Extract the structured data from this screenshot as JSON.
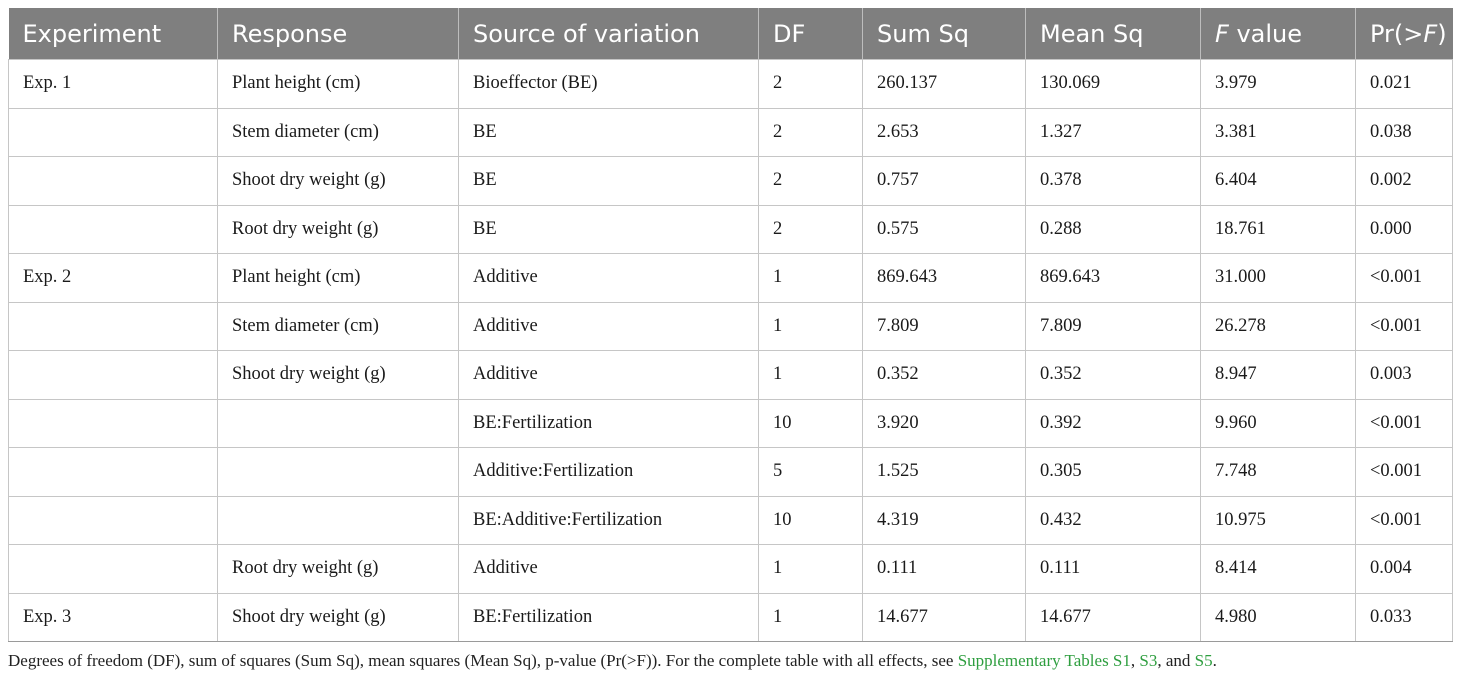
{
  "table": {
    "headers": [
      {
        "pre": "Experiment",
        "it": "",
        "post": ""
      },
      {
        "pre": "Response",
        "it": "",
        "post": ""
      },
      {
        "pre": "Source of variation",
        "it": "",
        "post": ""
      },
      {
        "pre": "DF",
        "it": "",
        "post": ""
      },
      {
        "pre": "Sum Sq",
        "it": "",
        "post": ""
      },
      {
        "pre": "Mean Sq",
        "it": "",
        "post": ""
      },
      {
        "pre": "",
        "it": "F",
        "post": " value"
      },
      {
        "pre": "Pr(>",
        "it": "F",
        "post": ")"
      }
    ],
    "rows": [
      [
        "Exp. 1",
        "Plant height (cm)",
        "Bioeffector (BE)",
        "2",
        "260.137",
        "130.069",
        "3.979",
        "0.021"
      ],
      [
        "",
        "Stem diameter (cm)",
        "BE",
        "2",
        "2.653",
        "1.327",
        "3.381",
        "0.038"
      ],
      [
        "",
        "Shoot dry weight (g)",
        "BE",
        "2",
        "0.757",
        "0.378",
        "6.404",
        "0.002"
      ],
      [
        "",
        "Root dry weight (g)",
        "BE",
        "2",
        "0.575",
        "0.288",
        "18.761",
        "0.000"
      ],
      [
        "Exp. 2",
        "Plant height (cm)",
        "Additive",
        "1",
        "869.643",
        "869.643",
        "31.000",
        "<0.001"
      ],
      [
        "",
        "Stem diameter (cm)",
        "Additive",
        "1",
        "7.809",
        "7.809",
        "26.278",
        "<0.001"
      ],
      [
        "",
        "Shoot dry weight (g)",
        "Additive",
        "1",
        "0.352",
        "0.352",
        "8.947",
        "0.003"
      ],
      [
        "",
        "",
        "BE:Fertilization",
        "10",
        "3.920",
        "0.392",
        "9.960",
        "<0.001"
      ],
      [
        "",
        "",
        "Additive:Fertilization",
        "5",
        "1.525",
        "0.305",
        "7.748",
        "<0.001"
      ],
      [
        "",
        "",
        "BE:Additive:Fertilization",
        "10",
        "4.319",
        "0.432",
        "10.975",
        "<0.001"
      ],
      [
        "",
        "Root dry weight (g)",
        "Additive",
        "1",
        "0.111",
        "0.111",
        "8.414",
        "0.004"
      ],
      [
        "Exp. 3",
        "Shoot dry weight (g)",
        "BE:Fertilization",
        "1",
        "14.677",
        "14.677",
        "4.980",
        "0.033"
      ]
    ]
  },
  "footnote": {
    "text": "Degrees of freedom (DF), sum of squares (Sum Sq), mean squares (Mean Sq), p-value (Pr(>F)). For the complete table with all effects, see ",
    "link1": "Supplementary Tables S1",
    "sep1": ", ",
    "link2": "S3",
    "sep2": ", and ",
    "link3": "S5",
    "end": "."
  },
  "colors": {
    "header_bg": "#7f7f7f",
    "header_text": "#ffffff",
    "link": "#2e9e3f"
  }
}
